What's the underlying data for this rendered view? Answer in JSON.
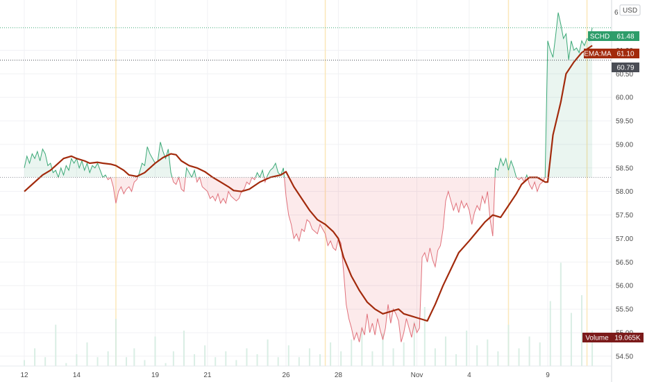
{
  "header": {
    "currency": "USD"
  },
  "chart_data": {
    "type": "line",
    "symbol": "SCHD",
    "indicator": "EMA:MA",
    "volume_label": "Volume",
    "current": {
      "price": 61.48,
      "ema": 61.1,
      "level": 60.79,
      "volume": "19.065K"
    },
    "price_label": "61.48",
    "ema_label": "61.10",
    "level_label": "60.79",
    "volume_value": "19.065K",
    "top_tick_label": "6",
    "ylim": [
      54.35,
      61.95
    ],
    "baseline": 58.3,
    "grid": true,
    "y_ticks": [
      {
        "v": 61.0,
        "label": "61.00"
      },
      {
        "v": 60.5,
        "label": "60.50"
      },
      {
        "v": 60.0,
        "label": "60.00"
      },
      {
        "v": 59.5,
        "label": "59.50"
      },
      {
        "v": 59.0,
        "label": "59.00"
      },
      {
        "v": 58.5,
        "label": "58.50"
      },
      {
        "v": 58.0,
        "label": "58.00"
      },
      {
        "v": 57.5,
        "label": "57.50"
      },
      {
        "v": 57.0,
        "label": "57.00"
      },
      {
        "v": 56.5,
        "label": "56.50"
      },
      {
        "v": 56.0,
        "label": "56.00"
      },
      {
        "v": 55.5,
        "label": "55.50"
      },
      {
        "v": 55.0,
        "label": "55.00"
      },
      {
        "v": 54.5,
        "label": "54.50"
      }
    ],
    "x_ticks": [
      {
        "i": 0,
        "label": "12"
      },
      {
        "i": 2,
        "label": "14"
      },
      {
        "i": 5,
        "label": "19"
      },
      {
        "i": 7,
        "label": "21"
      },
      {
        "i": 10,
        "label": "26"
      },
      {
        "i": 12,
        "label": "28"
      },
      {
        "i": 15,
        "label": "Nov"
      },
      {
        "i": 17,
        "label": "4"
      },
      {
        "i": 20,
        "label": "9"
      }
    ],
    "session_breaks": [
      3.5,
      11.5,
      18.5,
      21.5
    ],
    "price": [
      [
        0,
        58.5
      ],
      [
        0.1,
        58.75
      ],
      [
        0.2,
        58.6
      ],
      [
        0.3,
        58.8
      ],
      [
        0.4,
        58.7
      ],
      [
        0.5,
        58.85
      ],
      [
        0.6,
        58.65
      ],
      [
        0.7,
        58.9
      ],
      [
        0.8,
        58.8
      ],
      [
        0.9,
        58.55
      ],
      [
        1.0,
        58.6
      ],
      [
        1.1,
        58.4
      ],
      [
        1.2,
        58.45
      ],
      [
        1.3,
        58.3
      ],
      [
        1.4,
        58.5
      ],
      [
        1.5,
        58.35
      ],
      [
        1.6,
        58.55
      ],
      [
        1.7,
        58.45
      ],
      [
        1.8,
        58.7
      ],
      [
        1.9,
        58.6
      ],
      [
        2.0,
        58.7
      ],
      [
        2.1,
        58.5
      ],
      [
        2.2,
        58.65
      ],
      [
        2.3,
        58.45
      ],
      [
        2.4,
        58.6
      ],
      [
        2.5,
        58.4
      ],
      [
        2.6,
        58.55
      ],
      [
        2.7,
        58.5
      ],
      [
        2.8,
        58.6
      ],
      [
        2.9,
        58.45
      ],
      [
        3.0,
        58.3
      ],
      [
        3.1,
        58.35
      ],
      [
        3.2,
        58.25
      ],
      [
        3.3,
        58.3
      ],
      [
        3.4,
        58.1
      ],
      [
        3.5,
        57.75
      ],
      [
        3.6,
        58.0
      ],
      [
        3.7,
        58.1
      ],
      [
        3.8,
        57.95
      ],
      [
        3.9,
        58.05
      ],
      [
        4.0,
        58.1
      ],
      [
        4.1,
        58.0
      ],
      [
        4.2,
        58.2
      ],
      [
        4.3,
        58.25
      ],
      [
        4.4,
        58.4
      ],
      [
        4.5,
        58.6
      ],
      [
        4.6,
        58.55
      ],
      [
        4.7,
        58.95
      ],
      [
        4.8,
        58.8
      ],
      [
        4.9,
        58.7
      ],
      [
        5.0,
        58.6
      ],
      [
        5.1,
        58.65
      ],
      [
        5.2,
        59.05
      ],
      [
        5.3,
        58.85
      ],
      [
        5.4,
        58.7
      ],
      [
        5.5,
        58.9
      ],
      [
        5.6,
        58.4
      ],
      [
        5.7,
        58.2
      ],
      [
        5.8,
        58.15
      ],
      [
        5.9,
        58.3
      ],
      [
        6.0,
        58.05
      ],
      [
        6.1,
        58.0
      ],
      [
        6.2,
        58.5
      ],
      [
        6.3,
        58.4
      ],
      [
        6.4,
        58.3
      ],
      [
        6.5,
        58.45
      ],
      [
        6.6,
        58.2
      ],
      [
        6.7,
        58.3
      ],
      [
        6.8,
        58.1
      ],
      [
        6.9,
        58.05
      ],
      [
        7.0,
        58.0
      ],
      [
        7.1,
        57.85
      ],
      [
        7.2,
        57.9
      ],
      [
        7.3,
        57.8
      ],
      [
        7.4,
        57.95
      ],
      [
        7.5,
        57.75
      ],
      [
        7.6,
        57.85
      ],
      [
        7.7,
        57.75
      ],
      [
        7.8,
        58.0
      ],
      [
        7.9,
        57.9
      ],
      [
        8.0,
        57.85
      ],
      [
        8.1,
        57.8
      ],
      [
        8.2,
        57.85
      ],
      [
        8.3,
        58.0
      ],
      [
        8.4,
        58.05
      ],
      [
        8.5,
        58.2
      ],
      [
        8.6,
        58.15
      ],
      [
        8.7,
        58.3
      ],
      [
        8.8,
        58.25
      ],
      [
        8.9,
        58.4
      ],
      [
        9.0,
        58.3
      ],
      [
        9.1,
        58.45
      ],
      [
        9.2,
        58.2
      ],
      [
        9.3,
        58.35
      ],
      [
        9.4,
        58.45
      ],
      [
        9.5,
        58.5
      ],
      [
        9.6,
        58.6
      ],
      [
        9.7,
        58.4
      ],
      [
        9.8,
        58.35
      ],
      [
        9.9,
        58.5
      ],
      [
        10.0,
        57.9
      ],
      [
        10.1,
        57.5
      ],
      [
        10.2,
        57.3
      ],
      [
        10.3,
        57.0
      ],
      [
        10.4,
        57.1
      ],
      [
        10.5,
        56.95
      ],
      [
        10.6,
        57.2
      ],
      [
        10.7,
        57.15
      ],
      [
        10.8,
        57.4
      ],
      [
        10.9,
        57.35
      ],
      [
        11.0,
        57.2
      ],
      [
        11.1,
        57.15
      ],
      [
        11.2,
        57.1
      ],
      [
        11.3,
        57.3
      ],
      [
        11.4,
        57.2
      ],
      [
        11.5,
        57.1
      ],
      [
        11.6,
        56.85
      ],
      [
        11.7,
        56.95
      ],
      [
        11.8,
        56.8
      ],
      [
        11.9,
        56.75
      ],
      [
        12.0,
        57.0
      ],
      [
        12.1,
        56.9
      ],
      [
        12.2,
        56.3
      ],
      [
        12.3,
        55.6
      ],
      [
        12.4,
        55.3
      ],
      [
        12.5,
        55.1
      ],
      [
        12.6,
        54.85
      ],
      [
        12.7,
        55.0
      ],
      [
        12.8,
        54.8
      ],
      [
        12.9,
        55.1
      ],
      [
        13.0,
        54.95
      ],
      [
        13.1,
        55.4
      ],
      [
        13.2,
        55.0
      ],
      [
        13.3,
        55.2
      ],
      [
        13.4,
        54.95
      ],
      [
        13.5,
        55.3
      ],
      [
        13.6,
        55.05
      ],
      [
        13.7,
        54.85
      ],
      [
        13.8,
        55.1
      ],
      [
        13.9,
        55.6
      ],
      [
        14.0,
        55.2
      ],
      [
        14.1,
        55.5
      ],
      [
        14.2,
        55.4
      ],
      [
        14.3,
        55.25
      ],
      [
        14.4,
        54.8
      ],
      [
        14.5,
        55.0
      ],
      [
        14.6,
        55.3
      ],
      [
        14.7,
        55.1
      ],
      [
        14.8,
        54.9
      ],
      [
        14.9,
        55.2
      ],
      [
        15.0,
        55.0
      ],
      [
        15.1,
        55.1
      ],
      [
        15.2,
        56.6
      ],
      [
        15.3,
        56.7
      ],
      [
        15.4,
        56.5
      ],
      [
        15.5,
        56.8
      ],
      [
        15.6,
        56.55
      ],
      [
        15.7,
        56.4
      ],
      [
        15.8,
        56.75
      ],
      [
        15.9,
        56.85
      ],
      [
        16.0,
        57.2
      ],
      [
        16.1,
        57.8
      ],
      [
        16.2,
        58.0
      ],
      [
        16.3,
        57.8
      ],
      [
        16.4,
        57.6
      ],
      [
        16.5,
        57.75
      ],
      [
        16.6,
        57.55
      ],
      [
        16.7,
        57.8
      ],
      [
        16.8,
        57.65
      ],
      [
        16.9,
        57.75
      ],
      [
        17.0,
        57.6
      ],
      [
        17.1,
        57.3
      ],
      [
        17.2,
        57.55
      ],
      [
        17.3,
        57.7
      ],
      [
        17.4,
        57.6
      ],
      [
        17.5,
        57.9
      ],
      [
        17.6,
        57.75
      ],
      [
        17.7,
        58.0
      ],
      [
        17.8,
        57.4
      ],
      [
        17.9,
        57.05
      ],
      [
        18.0,
        58.5
      ],
      [
        18.1,
        58.45
      ],
      [
        18.2,
        58.7
      ],
      [
        18.3,
        58.55
      ],
      [
        18.4,
        58.7
      ],
      [
        18.5,
        58.45
      ],
      [
        18.6,
        58.65
      ],
      [
        18.7,
        58.5
      ],
      [
        18.8,
        58.3
      ],
      [
        18.9,
        58.25
      ],
      [
        19.0,
        58.3
      ],
      [
        19.1,
        58.2
      ],
      [
        19.2,
        58.35
      ],
      [
        19.3,
        58.15
      ],
      [
        19.4,
        58.05
      ],
      [
        19.5,
        58.2
      ],
      [
        19.6,
        58.0
      ],
      [
        19.7,
        58.15
      ],
      [
        19.8,
        58.2
      ],
      [
        19.9,
        58.3
      ],
      [
        20.0,
        61.2
      ],
      [
        20.1,
        61.0
      ],
      [
        20.2,
        60.85
      ],
      [
        20.3,
        61.3
      ],
      [
        20.4,
        61.8
      ],
      [
        20.5,
        61.55
      ],
      [
        20.6,
        61.25
      ],
      [
        20.7,
        61.35
      ],
      [
        20.8,
        60.8
      ],
      [
        20.9,
        61.2
      ],
      [
        21.0,
        61.0
      ],
      [
        21.1,
        61.05
      ],
      [
        21.2,
        60.95
      ],
      [
        21.3,
        61.2
      ],
      [
        21.4,
        61.1
      ],
      [
        21.5,
        61.25
      ],
      [
        21.6,
        61.2
      ],
      [
        21.7,
        61.48
      ]
    ],
    "ema": [
      [
        0,
        58.0
      ],
      [
        0.3,
        58.15
      ],
      [
        0.7,
        58.35
      ],
      [
        1.0,
        58.45
      ],
      [
        1.3,
        58.6
      ],
      [
        1.5,
        58.7
      ],
      [
        1.8,
        58.75
      ],
      [
        2.0,
        58.7
      ],
      [
        2.3,
        58.65
      ],
      [
        2.5,
        58.6
      ],
      [
        2.8,
        58.62
      ],
      [
        3.0,
        58.6
      ],
      [
        3.3,
        58.58
      ],
      [
        3.5,
        58.55
      ],
      [
        3.8,
        58.45
      ],
      [
        4.0,
        58.35
      ],
      [
        4.3,
        58.32
      ],
      [
        4.6,
        58.4
      ],
      [
        5.0,
        58.6
      ],
      [
        5.3,
        58.72
      ],
      [
        5.6,
        58.8
      ],
      [
        5.8,
        58.78
      ],
      [
        6.0,
        58.65
      ],
      [
        6.3,
        58.55
      ],
      [
        6.6,
        58.5
      ],
      [
        6.9,
        58.42
      ],
      [
        7.2,
        58.3
      ],
      [
        7.5,
        58.2
      ],
      [
        7.8,
        58.1
      ],
      [
        8.0,
        58.02
      ],
      [
        8.3,
        58.0
      ],
      [
        8.6,
        58.05
      ],
      [
        9.0,
        58.2
      ],
      [
        9.4,
        58.3
      ],
      [
        9.8,
        58.35
      ],
      [
        10.0,
        58.42
      ],
      [
        10.3,
        58.1
      ],
      [
        10.6,
        57.85
      ],
      [
        10.9,
        57.6
      ],
      [
        11.2,
        57.4
      ],
      [
        11.5,
        57.3
      ],
      [
        11.8,
        57.15
      ],
      [
        12.0,
        57.0
      ],
      [
        12.2,
        56.6
      ],
      [
        12.5,
        56.2
      ],
      [
        12.8,
        55.9
      ],
      [
        13.1,
        55.65
      ],
      [
        13.4,
        55.5
      ],
      [
        13.7,
        55.4
      ],
      [
        14.0,
        55.45
      ],
      [
        14.3,
        55.5
      ],
      [
        14.5,
        55.4
      ],
      [
        14.8,
        55.35
      ],
      [
        15.1,
        55.3
      ],
      [
        15.4,
        55.25
      ],
      [
        15.7,
        55.6
      ],
      [
        16.0,
        56.0
      ],
      [
        16.3,
        56.35
      ],
      [
        16.6,
        56.7
      ],
      [
        17.0,
        56.95
      ],
      [
        17.3,
        57.15
      ],
      [
        17.6,
        57.35
      ],
      [
        17.9,
        57.5
      ],
      [
        18.2,
        57.45
      ],
      [
        18.5,
        57.7
      ],
      [
        18.8,
        57.95
      ],
      [
        19.0,
        58.15
      ],
      [
        19.3,
        58.3
      ],
      [
        19.6,
        58.3
      ],
      [
        19.9,
        58.2
      ],
      [
        20.0,
        58.2
      ],
      [
        20.2,
        59.2
      ],
      [
        20.5,
        59.9
      ],
      [
        20.7,
        60.5
      ],
      [
        21.0,
        60.75
      ],
      [
        21.3,
        60.95
      ],
      [
        21.7,
        61.1
      ]
    ],
    "volume": [
      [
        0,
        2
      ],
      [
        0.4,
        6
      ],
      [
        0.8,
        3
      ],
      [
        1.2,
        14
      ],
      [
        1.6,
        1
      ],
      [
        2.0,
        4
      ],
      [
        2.4,
        8
      ],
      [
        2.8,
        3
      ],
      [
        3.2,
        5
      ],
      [
        3.5,
        16
      ],
      [
        3.9,
        3
      ],
      [
        4.2,
        6
      ],
      [
        4.6,
        2
      ],
      [
        5.0,
        10
      ],
      [
        5.4,
        1
      ],
      [
        5.7,
        5
      ],
      [
        6.1,
        12
      ],
      [
        6.5,
        4
      ],
      [
        6.9,
        7
      ],
      [
        7.3,
        3
      ],
      [
        7.7,
        5
      ],
      [
        8.1,
        2
      ],
      [
        8.5,
        6
      ],
      [
        8.9,
        4
      ],
      [
        9.3,
        9
      ],
      [
        9.7,
        3
      ],
      [
        10.1,
        7
      ],
      [
        10.5,
        3
      ],
      [
        10.9,
        6
      ],
      [
        11.3,
        4
      ],
      [
        11.7,
        8
      ],
      [
        12.1,
        5
      ],
      [
        12.5,
        9
      ],
      [
        12.9,
        13
      ],
      [
        13.3,
        5
      ],
      [
        13.7,
        11
      ],
      [
        14.1,
        6
      ],
      [
        14.5,
        8
      ],
      [
        14.9,
        15
      ],
      [
        15.3,
        20
      ],
      [
        15.7,
        6
      ],
      [
        16.1,
        10
      ],
      [
        16.5,
        4
      ],
      [
        16.9,
        12
      ],
      [
        17.3,
        7
      ],
      [
        17.7,
        9
      ],
      [
        18.1,
        5
      ],
      [
        18.5,
        14
      ],
      [
        18.9,
        6
      ],
      [
        19.3,
        10
      ],
      [
        19.7,
        8
      ],
      [
        20.1,
        22
      ],
      [
        20.5,
        35
      ],
      [
        20.9,
        18
      ],
      [
        21.3,
        24
      ],
      [
        21.7,
        12
      ]
    ]
  }
}
